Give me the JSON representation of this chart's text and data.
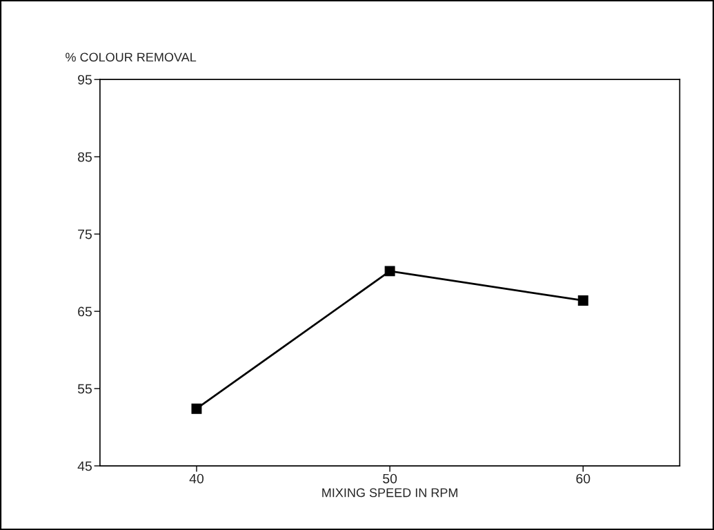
{
  "chart_data": {
    "type": "line",
    "xlabel": "MIXING SPEED IN RPM",
    "ylabel": "% COLOUR REMOVAL",
    "x": [
      40,
      50,
      60
    ],
    "series": [
      {
        "color": "#000000",
        "values": [
          52.4,
          70.2,
          66.4
        ]
      }
    ],
    "xlim": [
      35,
      65
    ],
    "xticks": [
      40,
      50,
      60
    ],
    "ylim": [
      45,
      95
    ],
    "yticks": [
      45,
      55,
      65,
      75,
      85,
      95
    ],
    "marker": "square",
    "line_style": "solid",
    "grid": false
  }
}
